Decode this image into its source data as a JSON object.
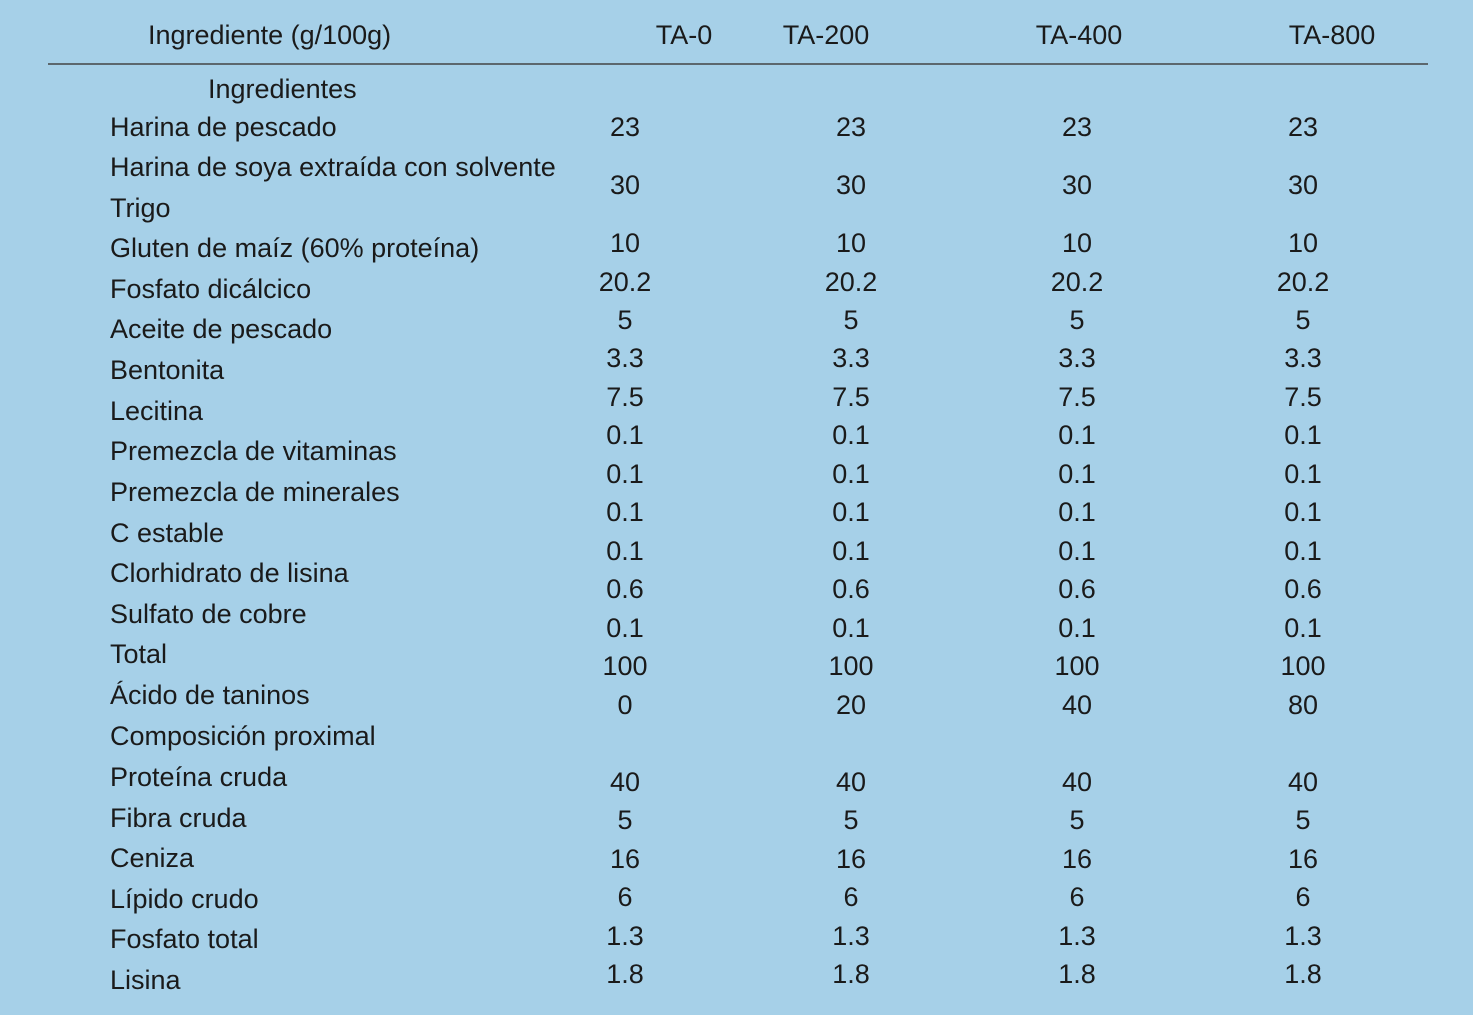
{
  "table": {
    "header": [
      "Ingrediente  (g/100g)",
      "TA-0",
      "TA-200",
      "TA-400",
      "TA-800"
    ],
    "section_title": "Ingredientes",
    "row_labels": [
      "Harina de pescado",
      "Harina de soya extraída con solvente",
      "Trigo",
      "Gluten de maíz (60% proteína)",
      "Fosfato dicálcico",
      "Aceite de pescado",
      "Bentonita",
      "Lecitina",
      "Premezcla de vitaminas",
      "Premezcla de minerales",
      "C estable",
      "Clorhidrato de lisina",
      "Sulfato de cobre",
      "Total",
      "Ácido de taninos",
      "Composición proximal",
      "Proteína cruda",
      "Fibra cruda",
      "Ceniza",
      "Lípido crudo",
      "Fosfato total",
      "Lisina"
    ],
    "values": [
      [
        23,
        23,
        23,
        23
      ],
      [
        30,
        30,
        30,
        30
      ],
      [
        10,
        10,
        10,
        10
      ],
      [
        20.2,
        20.2,
        20.2,
        20.2
      ],
      [
        5,
        5,
        5,
        5
      ],
      [
        3.3,
        3.3,
        3.3,
        3.3
      ],
      [
        7.5,
        7.5,
        7.5,
        7.5
      ],
      [
        0.1,
        0.1,
        0.1,
        0.1
      ],
      [
        0.1,
        0.1,
        0.1,
        0.1
      ],
      [
        0.1,
        0.1,
        0.1,
        0.1
      ],
      [
        0.1,
        0.1,
        0.1,
        0.1
      ],
      [
        0.6,
        0.6,
        0.6,
        0.6
      ],
      [
        0.1,
        0.1,
        0.1,
        0.1
      ],
      [
        100,
        100,
        100,
        100
      ],
      [
        0,
        20,
        40,
        80
      ],
      [
        40,
        40,
        40,
        40
      ],
      [
        5,
        5,
        5,
        5
      ],
      [
        16,
        16,
        16,
        16
      ],
      [
        6,
        6,
        6,
        6
      ],
      [
        1.3,
        1.3,
        1.3,
        1.3
      ],
      [
        1.8,
        1.8,
        1.8,
        1.8
      ]
    ]
  }
}
